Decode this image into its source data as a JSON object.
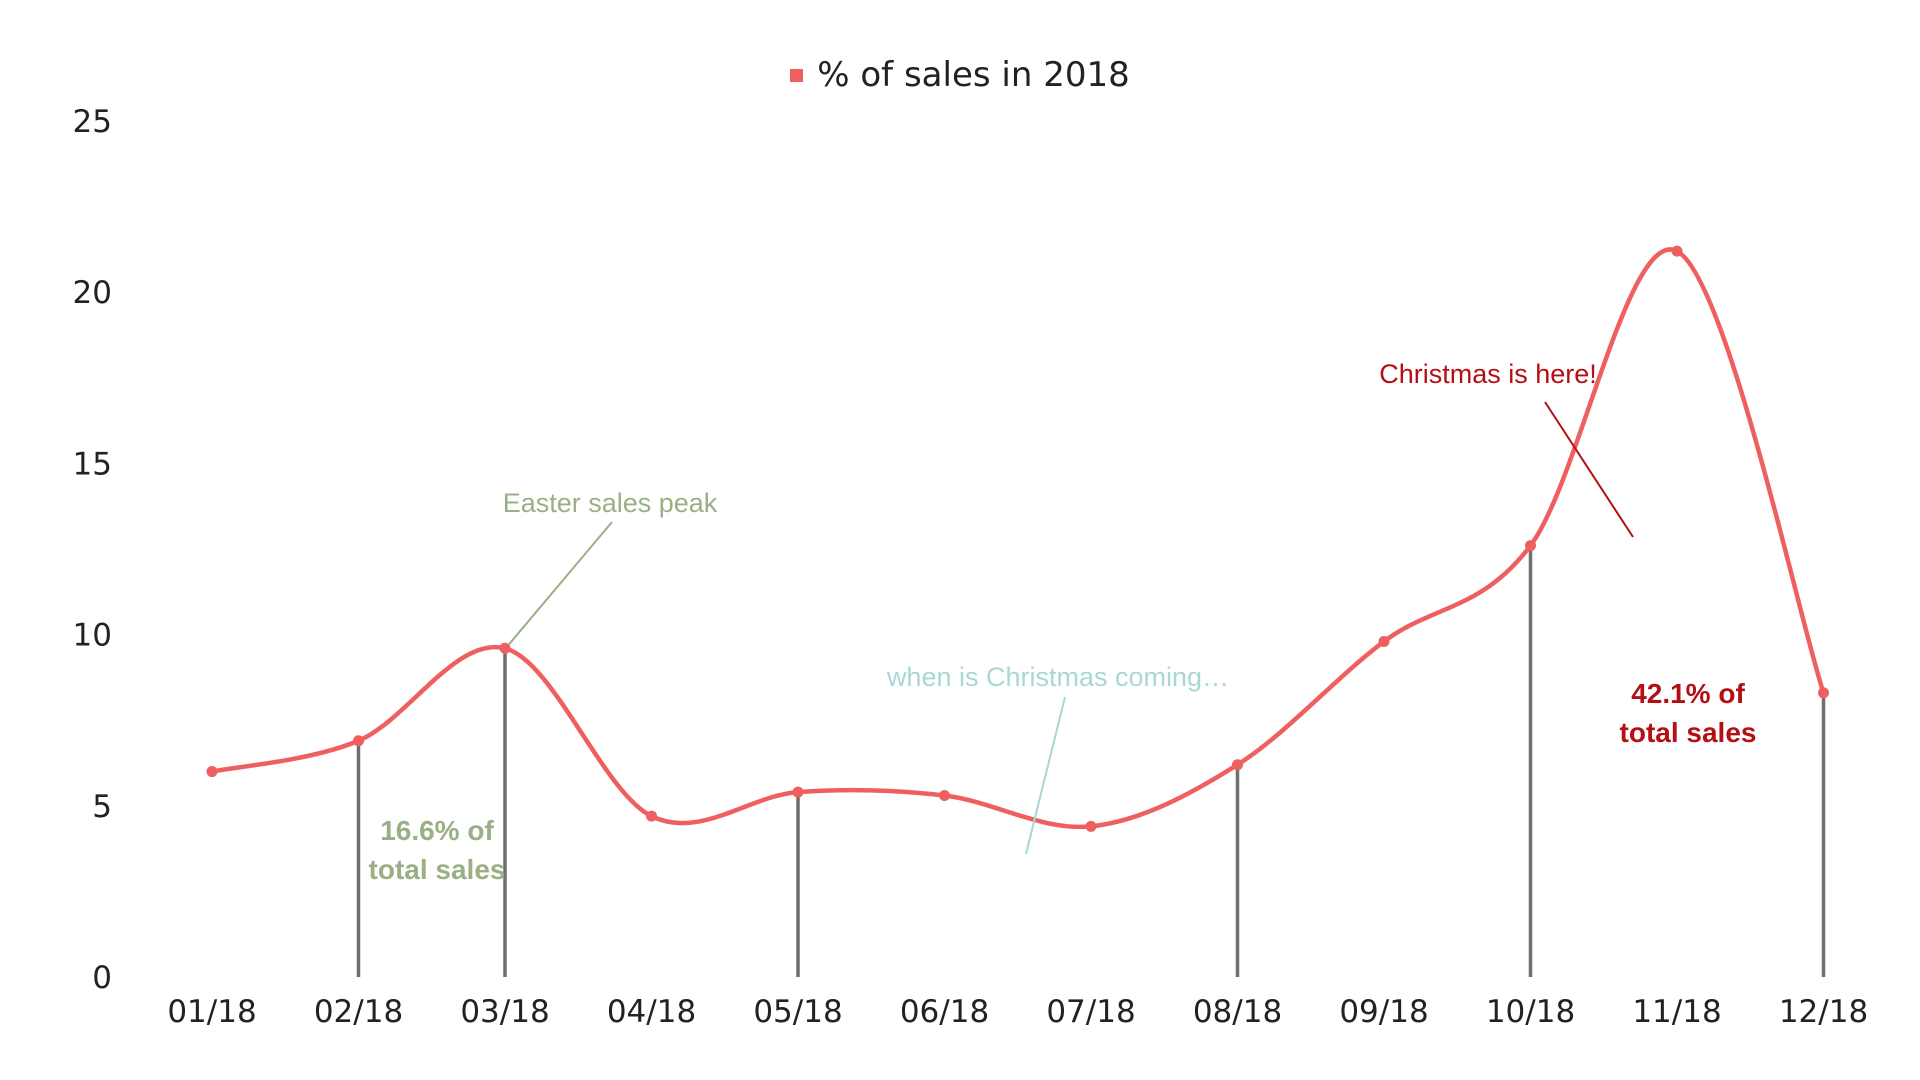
{
  "chart_data": {
    "type": "line",
    "title": "",
    "xlabel": "",
    "ylabel": "",
    "categories": [
      "01/18",
      "02/18",
      "03/18",
      "04/18",
      "05/18",
      "06/18",
      "07/18",
      "08/18",
      "09/18",
      "10/18",
      "11/18",
      "12/18"
    ],
    "series": [
      {
        "name": "% of sales in 2018",
        "color": "#EF5F5F",
        "values": [
          6.0,
          6.9,
          9.6,
          4.7,
          5.4,
          5.3,
          4.4,
          6.2,
          9.8,
          12.6,
          21.2,
          8.3
        ]
      }
    ],
    "ylim": [
      0,
      25
    ],
    "yticks": [
      "0",
      "5",
      "10",
      "15",
      "20",
      "25"
    ],
    "grid": false,
    "legend": "top-center",
    "drop_lines_at": [
      "02/18",
      "03/18",
      "05/18",
      "08/18",
      "10/18",
      "12/18"
    ],
    "annotations": {
      "easter": {
        "text": "Easter sales peak",
        "color": "#9BAF85"
      },
      "easter_share": {
        "line1": "16.6% of",
        "line2": "total sales",
        "color": "#9BAF85"
      },
      "waiting": {
        "text": "when is Christmas coming…",
        "color": "#A8D8D6"
      },
      "christmas": {
        "text": "Christmas is here!",
        "color": "#B30F14"
      },
      "christmas_share": {
        "line1": "42.1% of",
        "line2": "total sales",
        "color": "#B30F14"
      }
    }
  }
}
